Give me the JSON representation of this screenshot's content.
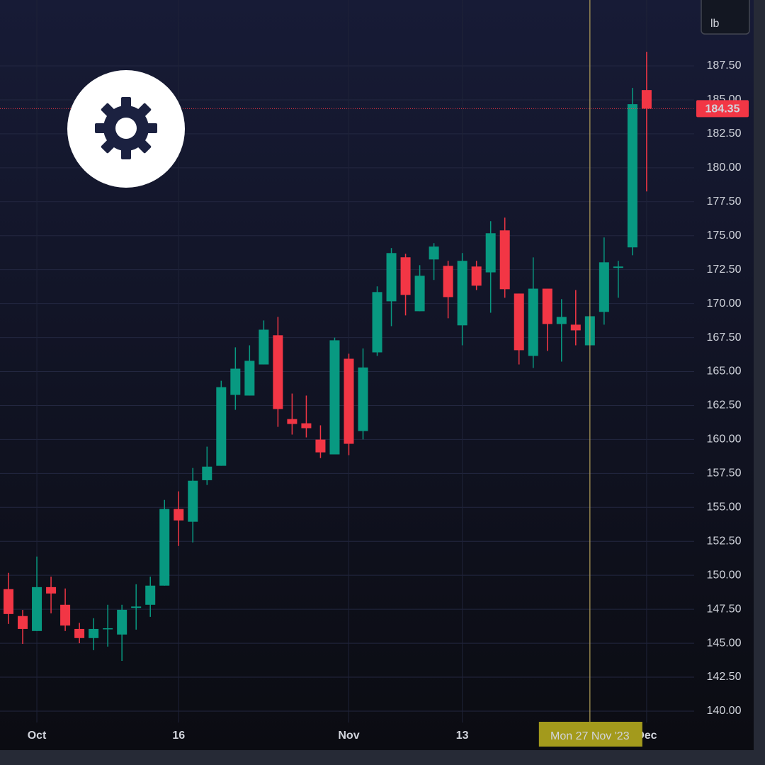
{
  "chart_data": {
    "type": "candlestick",
    "unit": "lb",
    "up_color": "#089981",
    "down_color": "#f23645",
    "crosshair_label": "Mon 27 Nov '23",
    "last_price": 184.35,
    "grid": true,
    "categories": [
      null,
      null,
      "Oct",
      null,
      null,
      null,
      null,
      null,
      null,
      null,
      null,
      null,
      "16",
      null,
      null,
      null,
      null,
      null,
      null,
      null,
      null,
      null,
      null,
      null,
      "Nov",
      null,
      null,
      null,
      null,
      null,
      null,
      null,
      "13",
      null,
      null,
      null,
      null,
      null,
      null,
      null,
      null,
      null,
      null,
      null,
      null,
      "Dec"
    ],
    "series": [
      {
        "name": "open",
        "values": [
          148.98,
          147.0,
          145.9,
          149.13,
          147.83,
          146.05,
          145.38,
          146.05,
          145.64,
          147.6,
          147.83,
          149.24,
          154.88,
          153.94,
          157.0,
          158.06,
          163.28,
          163.23,
          165.52,
          167.67,
          161.5,
          161.19,
          159.99,
          158.9,
          165.94,
          160.62,
          166.41,
          170.17,
          173.41,
          169.44,
          173.25,
          172.78,
          168.4,
          172.73,
          172.3,
          175.39,
          170.74,
          166.15,
          171.1,
          168.5,
          168.45,
          166.93,
          169.39,
          172.63,
          174.14,
          185.72
        ]
      },
      {
        "name": "high",
        "values": [
          150.18,
          147.45,
          151.38,
          149.9,
          149.03,
          146.5,
          146.84,
          147.83,
          147.83,
          149.34,
          149.9,
          155.55,
          156.18,
          157.9,
          159.47,
          164.32,
          166.78,
          166.93,
          168.76,
          169.02,
          163.38,
          163.23,
          161.04,
          167.5,
          166.31,
          166.7,
          171.27,
          174.09,
          173.67,
          172.83,
          174.45,
          173.15,
          173.72,
          173.15,
          176.07,
          176.33,
          170.74,
          173.4,
          171.1,
          170.33,
          171.0,
          169.07,
          174.87,
          173.15,
          185.88,
          188.54
        ]
      },
      {
        "name": "low",
        "values": [
          146.42,
          144.95,
          145.9,
          147.2,
          145.9,
          145.0,
          144.49,
          144.75,
          143.7,
          146.0,
          146.94,
          149.24,
          152.16,
          152.42,
          156.65,
          158.06,
          162.18,
          163.23,
          165.52,
          160.93,
          160.36,
          160.15,
          158.63,
          158.9,
          158.84,
          160.0,
          166.15,
          168.34,
          169.13,
          169.44,
          171.74,
          168.92,
          166.93,
          171.0,
          169.33,
          170.43,
          165.52,
          165.26,
          166.52,
          165.73,
          166.93,
          166.93,
          168.45,
          170.43,
          173.56,
          178.26
        ]
      },
      {
        "name": "close",
        "values": [
          147.15,
          146.05,
          149.13,
          148.66,
          146.3,
          145.38,
          146.05,
          146.1,
          147.46,
          147.7,
          149.24,
          154.88,
          154.04,
          156.96,
          158.0,
          163.85,
          165.21,
          165.79,
          168.08,
          162.24,
          161.14,
          160.83,
          159.05,
          167.3,
          159.68,
          165.3,
          170.85,
          173.72,
          170.64,
          172.05,
          174.2,
          170.48,
          173.15,
          171.32,
          175.18,
          171.06,
          166.57,
          171.1,
          168.5,
          169.02,
          168.03,
          169.07,
          173.04,
          172.73,
          184.68,
          184.35
        ]
      }
    ],
    "ylim": [
      137.13,
      192.35
    ],
    "yticks": [
      {
        "value": 140,
        "label": "140.00"
      },
      {
        "value": 142.5,
        "label": "142.50"
      },
      {
        "value": 145,
        "label": "145.00"
      },
      {
        "value": 147.5,
        "label": "147.50"
      },
      {
        "value": 150,
        "label": "150.00"
      },
      {
        "value": 152.5,
        "label": "152.50"
      },
      {
        "value": 155,
        "label": "155.00"
      },
      {
        "value": 157.5,
        "label": "157.50"
      },
      {
        "value": 160,
        "label": "160.00"
      },
      {
        "value": 162.5,
        "label": "162.50"
      },
      {
        "value": 165,
        "label": "165.00"
      },
      {
        "value": 167.5,
        "label": "167.50"
      },
      {
        "value": 170,
        "label": "170.00"
      },
      {
        "value": 172.5,
        "label": "172.50"
      },
      {
        "value": 175,
        "label": "175.00"
      },
      {
        "value": 177.5,
        "label": "177.50"
      },
      {
        "value": 180,
        "label": "180.00"
      },
      {
        "value": 182.5,
        "label": "182.50"
      },
      {
        "value": 185,
        "label": "185.00"
      },
      {
        "value": 187.5,
        "label": "187.50"
      }
    ]
  }
}
